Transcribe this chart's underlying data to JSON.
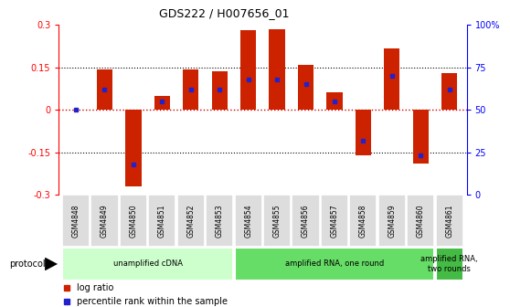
{
  "title": "GDS222 / H007656_01",
  "samples": [
    "GSM4848",
    "GSM4849",
    "GSM4850",
    "GSM4851",
    "GSM4852",
    "GSM4853",
    "GSM4854",
    "GSM4855",
    "GSM4856",
    "GSM4857",
    "GSM4858",
    "GSM4859",
    "GSM4860",
    "GSM4861"
  ],
  "log_ratio": [
    0.0,
    0.143,
    -0.27,
    0.05,
    0.143,
    0.137,
    0.28,
    0.285,
    0.158,
    0.06,
    -0.16,
    0.215,
    -0.19,
    0.128
  ],
  "percentile": [
    50,
    62,
    18,
    55,
    62,
    62,
    68,
    68,
    65,
    55,
    32,
    70,
    23,
    62
  ],
  "ylim": [
    -0.3,
    0.3
  ],
  "yticks_left": [
    -0.3,
    -0.15,
    0.0,
    0.15,
    0.3
  ],
  "yticks_right": [
    0,
    25,
    50,
    75,
    100
  ],
  "ytick_labels_left": [
    "-0.3",
    "-0.15",
    "0",
    "0.15",
    "0.3"
  ],
  "ytick_labels_right": [
    "0",
    "25",
    "50",
    "75",
    "100%"
  ],
  "bar_color": "#CC2200",
  "dot_color": "#2222CC",
  "dotted_line_color": "#CC0000",
  "bg_plot": "#FFFFFF",
  "protocol_groups": [
    {
      "label": "unamplified cDNA",
      "start": 0,
      "end": 5,
      "color": "#CCFFCC"
    },
    {
      "label": "amplified RNA, one round",
      "start": 6,
      "end": 12,
      "color": "#66DD66"
    },
    {
      "label": "amplified RNA,\ntwo rounds",
      "start": 13,
      "end": 13,
      "color": "#44BB44"
    }
  ],
  "protocol_label": "protocol",
  "legend_items": [
    {
      "label": "log ratio",
      "color": "#CC2200"
    },
    {
      "label": "percentile rank within the sample",
      "color": "#2222CC"
    }
  ],
  "bar_width": 0.55
}
